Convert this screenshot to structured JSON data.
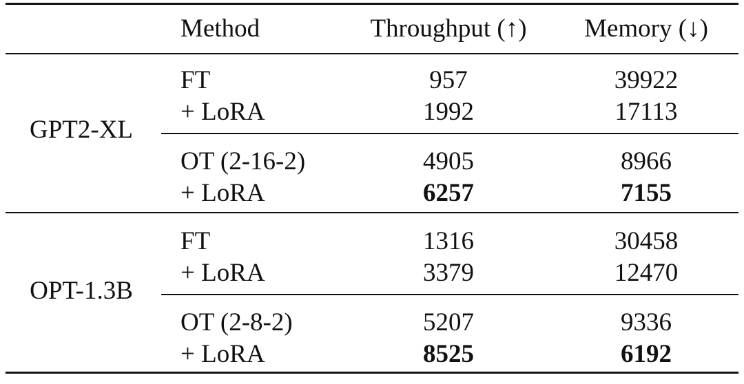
{
  "table": {
    "headers": {
      "method": "Method",
      "throughput": "Throughput (↑)",
      "memory": "Memory (↓)"
    },
    "groups": [
      {
        "model": "GPT2-XL",
        "blocks": [
          {
            "rows": [
              {
                "method": "FT",
                "throughput": "957",
                "memory": "39922",
                "bold": false
              },
              {
                "method": "+ LoRA",
                "throughput": "1992",
                "memory": "17113",
                "bold": false
              }
            ]
          },
          {
            "rows": [
              {
                "method": "OT (2-16-2)",
                "throughput": "4905",
                "memory": "8966",
                "bold": false
              },
              {
                "method": "+ LoRA",
                "throughput": "6257",
                "memory": "7155",
                "bold": true
              }
            ]
          }
        ]
      },
      {
        "model": "OPT-1.3B",
        "blocks": [
          {
            "rows": [
              {
                "method": "FT",
                "throughput": "1316",
                "memory": "30458",
                "bold": false
              },
              {
                "method": "+ LoRA",
                "throughput": "3379",
                "memory": "12470",
                "bold": false
              }
            ]
          },
          {
            "rows": [
              {
                "method": "OT (2-8-2)",
                "throughput": "5207",
                "memory": "9336",
                "bold": false
              },
              {
                "method": "+ LoRA",
                "throughput": "8525",
                "memory": "6192",
                "bold": true
              }
            ]
          }
        ]
      }
    ]
  }
}
